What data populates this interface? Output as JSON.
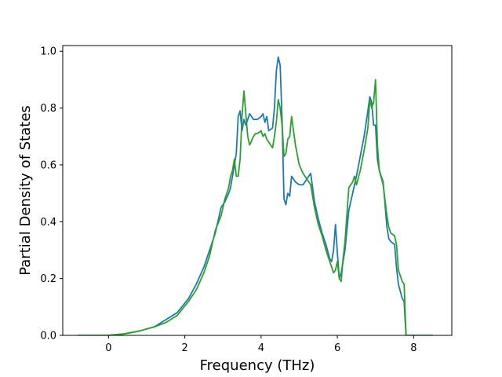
{
  "chart_data": {
    "type": "line",
    "title": "",
    "xlabel": "Frequency (THz)",
    "ylabel": "Partial Density of States",
    "xlim": [
      -1.2,
      9.0
    ],
    "ylim": [
      0.0,
      1.02
    ],
    "xticks": [
      0,
      2,
      4,
      6,
      8
    ],
    "xtick_labels": [
      "0",
      "2",
      "4",
      "6",
      "8"
    ],
    "yticks": [
      0.0,
      0.2,
      0.4,
      0.6,
      0.8,
      1.0
    ],
    "ytick_labels": [
      "0.0",
      "0.2",
      "0.4",
      "0.6",
      "0.8",
      "1.0"
    ],
    "grid": false,
    "legend": false,
    "series": [
      {
        "color": "#1f77b4",
        "x": [
          -0.8,
          0.0,
          0.4,
          0.8,
          1.2,
          1.5,
          1.8,
          2.1,
          2.3,
          2.5,
          2.65,
          2.8,
          2.95,
          3.05,
          3.15,
          3.2,
          3.25,
          3.3,
          3.35,
          3.4,
          3.45,
          3.5,
          3.55,
          3.6,
          3.7,
          3.8,
          3.9,
          4.0,
          4.05,
          4.1,
          4.15,
          4.2,
          4.3,
          4.35,
          4.4,
          4.45,
          4.5,
          4.55,
          4.6,
          4.65,
          4.7,
          4.75,
          4.8,
          4.85,
          4.9,
          5.0,
          5.1,
          5.2,
          5.3,
          5.4,
          5.5,
          5.6,
          5.7,
          5.8,
          5.85,
          5.9,
          5.95,
          6.0,
          6.05,
          6.1,
          6.15,
          6.2,
          6.3,
          6.4,
          6.5,
          6.6,
          6.7,
          6.8,
          6.85,
          6.9,
          6.95,
          7.0,
          7.05,
          7.1,
          7.2,
          7.3,
          7.35,
          7.4,
          7.5,
          7.55,
          7.6,
          7.7,
          7.75,
          7.8,
          8.0,
          8.5
        ],
        "y": [
          0.0,
          0.0,
          0.005,
          0.015,
          0.03,
          0.055,
          0.08,
          0.13,
          0.18,
          0.24,
          0.3,
          0.36,
          0.45,
          0.47,
          0.5,
          0.52,
          0.56,
          0.6,
          0.64,
          0.77,
          0.79,
          0.72,
          0.76,
          0.74,
          0.78,
          0.76,
          0.76,
          0.77,
          0.78,
          0.75,
          0.77,
          0.72,
          0.73,
          0.8,
          0.93,
          0.98,
          0.95,
          0.76,
          0.48,
          0.46,
          0.5,
          0.49,
          0.56,
          0.55,
          0.54,
          0.53,
          0.53,
          0.55,
          0.57,
          0.47,
          0.41,
          0.36,
          0.32,
          0.27,
          0.26,
          0.3,
          0.39,
          0.29,
          0.2,
          0.22,
          0.26,
          0.3,
          0.44,
          0.5,
          0.56,
          0.63,
          0.7,
          0.79,
          0.84,
          0.82,
          0.74,
          0.74,
          0.62,
          0.58,
          0.54,
          0.38,
          0.34,
          0.33,
          0.32,
          0.24,
          0.18,
          0.13,
          0.12,
          0.0,
          0.0,
          0.0
        ]
      },
      {
        "color": "#2ca02c",
        "x": [
          -0.8,
          0.0,
          0.4,
          0.8,
          1.2,
          1.5,
          1.8,
          2.1,
          2.3,
          2.5,
          2.65,
          2.8,
          2.95,
          3.05,
          3.15,
          3.2,
          3.25,
          3.3,
          3.35,
          3.4,
          3.45,
          3.5,
          3.55,
          3.6,
          3.65,
          3.7,
          3.8,
          3.85,
          3.9,
          4.0,
          4.05,
          4.1,
          4.15,
          4.2,
          4.25,
          4.3,
          4.35,
          4.4,
          4.45,
          4.5,
          4.55,
          4.6,
          4.65,
          4.7,
          4.75,
          4.8,
          4.85,
          4.9,
          5.0,
          5.1,
          5.2,
          5.3,
          5.4,
          5.5,
          5.6,
          5.7,
          5.8,
          5.85,
          5.9,
          5.95,
          6.0,
          6.05,
          6.1,
          6.15,
          6.2,
          6.3,
          6.4,
          6.45,
          6.5,
          6.6,
          6.7,
          6.8,
          6.85,
          6.9,
          6.95,
          7.0,
          7.05,
          7.1,
          7.2,
          7.3,
          7.35,
          7.4,
          7.5,
          7.55,
          7.6,
          7.7,
          7.75,
          7.8,
          8.0,
          8.5
        ],
        "y": [
          0.0,
          0.0,
          0.005,
          0.015,
          0.03,
          0.045,
          0.07,
          0.12,
          0.16,
          0.22,
          0.28,
          0.37,
          0.42,
          0.48,
          0.52,
          0.56,
          0.58,
          0.62,
          0.56,
          0.56,
          0.62,
          0.77,
          0.86,
          0.78,
          0.7,
          0.67,
          0.7,
          0.71,
          0.71,
          0.72,
          0.7,
          0.71,
          0.69,
          0.68,
          0.67,
          0.66,
          0.7,
          0.75,
          0.83,
          0.8,
          0.74,
          0.63,
          0.64,
          0.69,
          0.7,
          0.77,
          0.72,
          0.67,
          0.6,
          0.57,
          0.55,
          0.53,
          0.45,
          0.39,
          0.35,
          0.3,
          0.26,
          0.24,
          0.22,
          0.23,
          0.26,
          0.2,
          0.19,
          0.27,
          0.33,
          0.52,
          0.54,
          0.56,
          0.53,
          0.58,
          0.65,
          0.73,
          0.83,
          0.8,
          0.82,
          0.9,
          0.67,
          0.58,
          0.53,
          0.42,
          0.38,
          0.36,
          0.35,
          0.32,
          0.23,
          0.19,
          0.18,
          0.0,
          0.0,
          0.0
        ]
      }
    ]
  }
}
